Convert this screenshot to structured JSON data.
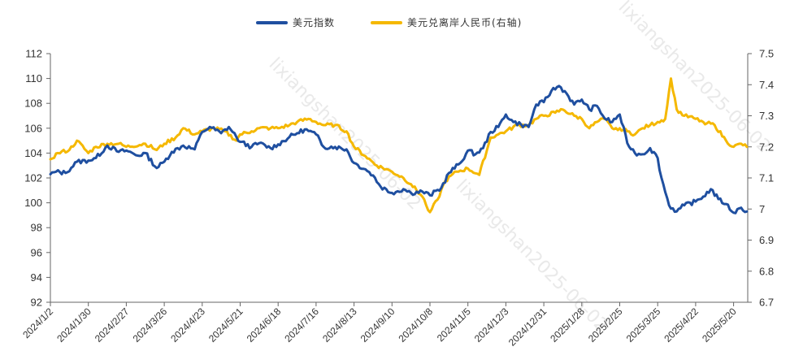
{
  "chart_data": {
    "type": "line",
    "legend_placement": "top-center",
    "grid": false,
    "colors": {
      "dxy": "#1f4fa0",
      "cnh": "#f5b800"
    },
    "x_ticks": [
      "2024/1/2",
      "2024/1/30",
      "2024/2/27",
      "2024/3/26",
      "2024/4/23",
      "2024/5/21",
      "2024/6/18",
      "2024/7/16",
      "2024/8/13",
      "2024/9/10",
      "2024/10/8",
      "2024/11/5",
      "2024/12/3",
      "2024/12/31",
      "2025/1/28",
      "2025/2/25",
      "2025/3/25",
      "2025/4/22",
      "2025/5/20"
    ],
    "y_left": {
      "ylim": [
        92,
        112
      ],
      "ticks": [
        "92",
        "94",
        "96",
        "98",
        "100",
        "102",
        "104",
        "106",
        "108",
        "110",
        "112"
      ]
    },
    "y_right": {
      "ylim": [
        6.7,
        7.5
      ],
      "ticks": [
        "6.7",
        "6.8",
        "6.9",
        "7",
        "7.1",
        "7.2",
        "7.3",
        "7.4",
        "7.5"
      ]
    },
    "x_end_index": 18.35,
    "series": [
      {
        "name": "美元指数",
        "axis": "left",
        "points": [
          [
            0,
            102.3
          ],
          [
            0.15,
            102.5
          ],
          [
            0.4,
            102.4
          ],
          [
            0.7,
            103.3
          ],
          [
            1,
            103.4
          ],
          [
            1.2,
            103.6
          ],
          [
            1.5,
            104.6
          ],
          [
            1.8,
            104.1
          ],
          [
            2,
            104.2
          ],
          [
            2.3,
            103.8
          ],
          [
            2.5,
            104.0
          ],
          [
            2.8,
            102.8
          ],
          [
            3,
            103.3
          ],
          [
            3.2,
            104.1
          ],
          [
            3.5,
            104.6
          ],
          [
            3.8,
            104.3
          ],
          [
            4,
            105.7
          ],
          [
            4.2,
            106.1
          ],
          [
            4.5,
            105.6
          ],
          [
            4.7,
            106.1
          ],
          [
            4.9,
            105.3
          ],
          [
            5,
            104.9
          ],
          [
            5.3,
            104.5
          ],
          [
            5.5,
            104.8
          ],
          [
            5.8,
            104.4
          ],
          [
            6,
            104.7
          ],
          [
            6.3,
            105.3
          ],
          [
            6.5,
            105.6
          ],
          [
            6.7,
            105.9
          ],
          [
            7,
            105.5
          ],
          [
            7.2,
            104.5
          ],
          [
            7.5,
            104.5
          ],
          [
            7.8,
            104.3
          ],
          [
            8,
            103.2
          ],
          [
            8.3,
            102.7
          ],
          [
            8.5,
            102.2
          ],
          [
            8.7,
            101.3
          ],
          [
            9,
            100.8
          ],
          [
            9.3,
            101.1
          ],
          [
            9.5,
            100.8
          ],
          [
            9.8,
            100.9
          ],
          [
            10,
            100.6
          ],
          [
            10.3,
            101.2
          ],
          [
            10.5,
            102.4
          ],
          [
            10.8,
            103.2
          ],
          [
            11,
            104.2
          ],
          [
            11.2,
            103.9
          ],
          [
            11.4,
            104.4
          ],
          [
            11.6,
            105.7
          ],
          [
            11.8,
            106.1
          ],
          [
            12,
            107.1
          ],
          [
            12.2,
            106.5
          ],
          [
            12.4,
            106.3
          ],
          [
            12.6,
            106.1
          ],
          [
            12.8,
            107.9
          ],
          [
            13,
            108.1
          ],
          [
            13.2,
            109.0
          ],
          [
            13.4,
            109.4
          ],
          [
            13.6,
            108.8
          ],
          [
            13.8,
            107.9
          ],
          [
            14,
            108.3
          ],
          [
            14.2,
            107.5
          ],
          [
            14.4,
            107.8
          ],
          [
            14.6,
            106.8
          ],
          [
            14.8,
            106.5
          ],
          [
            15,
            107.1
          ],
          [
            15.2,
            104.8
          ],
          [
            15.4,
            104.0
          ],
          [
            15.6,
            103.9
          ],
          [
            15.8,
            104.4
          ],
          [
            16,
            103.6
          ],
          [
            16.1,
            102.0
          ],
          [
            16.3,
            99.8
          ],
          [
            16.5,
            99.3
          ],
          [
            16.7,
            99.8
          ],
          [
            17,
            100.1
          ],
          [
            17.2,
            100.5
          ],
          [
            17.4,
            101.1
          ],
          [
            17.6,
            100.3
          ],
          [
            17.8,
            99.9
          ],
          [
            18,
            99.2
          ],
          [
            18.2,
            99.6
          ],
          [
            18.35,
            99.3
          ]
        ]
      },
      {
        "name": "美元兑离岸人民币(右轴)",
        "axis": "right",
        "points": [
          [
            0,
            7.16
          ],
          [
            0.2,
            7.18
          ],
          [
            0.5,
            7.19
          ],
          [
            0.7,
            7.22
          ],
          [
            1,
            7.18
          ],
          [
            1.2,
            7.2
          ],
          [
            1.5,
            7.21
          ],
          [
            1.8,
            7.21
          ],
          [
            2,
            7.2
          ],
          [
            2.5,
            7.21
          ],
          [
            2.8,
            7.19
          ],
          [
            3,
            7.21
          ],
          [
            3.3,
            7.23
          ],
          [
            3.5,
            7.26
          ],
          [
            3.8,
            7.24
          ],
          [
            4,
            7.25
          ],
          [
            4.3,
            7.26
          ],
          [
            4.6,
            7.25
          ],
          [
            4.9,
            7.22
          ],
          [
            5,
            7.24
          ],
          [
            5.3,
            7.25
          ],
          [
            5.5,
            7.26
          ],
          [
            5.8,
            7.26
          ],
          [
            6,
            7.26
          ],
          [
            6.3,
            7.27
          ],
          [
            6.5,
            7.28
          ],
          [
            6.8,
            7.29
          ],
          [
            7,
            7.28
          ],
          [
            7.2,
            7.27
          ],
          [
            7.5,
            7.27
          ],
          [
            7.8,
            7.25
          ],
          [
            8,
            7.2
          ],
          [
            8.3,
            7.17
          ],
          [
            8.6,
            7.14
          ],
          [
            9,
            7.12
          ],
          [
            9.3,
            7.1
          ],
          [
            9.5,
            7.08
          ],
          [
            9.8,
            7.04
          ],
          [
            10,
            6.99
          ],
          [
            10.2,
            7.03
          ],
          [
            10.4,
            7.09
          ],
          [
            10.7,
            7.12
          ],
          [
            11,
            7.13
          ],
          [
            11.3,
            7.11
          ],
          [
            11.6,
            7.23
          ],
          [
            11.8,
            7.24
          ],
          [
            12,
            7.25
          ],
          [
            12.3,
            7.27
          ],
          [
            12.6,
            7.27
          ],
          [
            12.8,
            7.29
          ],
          [
            13,
            7.3
          ],
          [
            13.3,
            7.31
          ],
          [
            13.5,
            7.32
          ],
          [
            13.8,
            7.3
          ],
          [
            14,
            7.29
          ],
          [
            14.2,
            7.26
          ],
          [
            14.4,
            7.28
          ],
          [
            14.6,
            7.29
          ],
          [
            14.8,
            7.26
          ],
          [
            15,
            7.26
          ],
          [
            15.2,
            7.25
          ],
          [
            15.4,
            7.24
          ],
          [
            15.6,
            7.26
          ],
          [
            15.8,
            7.27
          ],
          [
            16,
            7.28
          ],
          [
            16.2,
            7.29
          ],
          [
            16.35,
            7.42
          ],
          [
            16.5,
            7.32
          ],
          [
            16.7,
            7.3
          ],
          [
            17,
            7.29
          ],
          [
            17.2,
            7.28
          ],
          [
            17.5,
            7.27
          ],
          [
            17.8,
            7.22
          ],
          [
            18,
            7.2
          ],
          [
            18.2,
            7.21
          ],
          [
            18.35,
            7.2
          ]
        ]
      }
    ]
  },
  "watermark": {
    "texts": [
      "lixiangshan2025-06-02",
      "lixiangshan2025-06-02",
      "lixiangshan2025-06-02"
    ],
    "color": "#e9e9e9"
  }
}
